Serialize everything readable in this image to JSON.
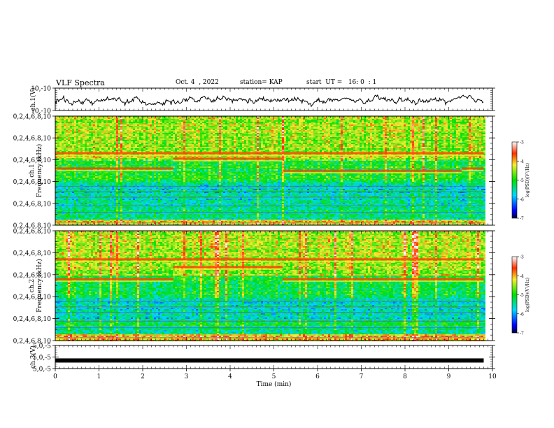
{
  "header": {
    "title": "VLF Spectra",
    "date": "Oct. 4  , 2022",
    "station": "station= KAP",
    "start": "start  UT =   16: 0  : 1"
  },
  "chart_data": [
    {
      "type": "line",
      "panel": "ch1-waveform",
      "ylabel": "ch.1(V)",
      "ylim": [
        -10,
        10
      ],
      "ytick_labels": [
        "10",
        "-10"
      ],
      "xlim": [
        0,
        9.8
      ],
      "series": [
        {
          "color": "#000000",
          "mean": -1.5,
          "amplitude": 5
        }
      ]
    },
    {
      "type": "heatmap",
      "panel": "ch1-spectrogram",
      "ylabel": "ch.1\nFrequency  (kHz)",
      "xlim": [
        0,
        9.8
      ],
      "ylim": [
        0,
        10
      ],
      "ytick_labels": [
        "0",
        "2",
        "4",
        "6",
        "8",
        "10"
      ],
      "colorbar": {
        "label": "log(PSD)(V²/Hz)",
        "range": [
          -7,
          -3
        ],
        "tick_labels": [
          "-3",
          "-4",
          "-5",
          "-6",
          "-7"
        ]
      },
      "segments_min": [
        0,
        1,
        2.7,
        5.2,
        9.3,
        9.8
      ],
      "tones_khz": [
        [
          6.6,
          5.2
        ],
        [
          5.2,
          6.6
        ],
        [
          6.6,
          6.1
        ],
        [
          6.6,
          5.0
        ],
        [
          5.2,
          6.6
        ]
      ]
    },
    {
      "type": "heatmap",
      "panel": "ch2-spectrogram",
      "ylabel": "ch.2\nFrequency  (kHz)",
      "xlim": [
        0,
        9.8
      ],
      "ylim": [
        0,
        10
      ],
      "ytick_labels": [
        "0",
        "2",
        "4",
        "6",
        "8",
        "10"
      ],
      "colorbar": {
        "label": "log(PSD)(V²/Hz)",
        "range": [
          -7,
          -3
        ],
        "tick_labels": [
          "-3",
          "-4",
          "-5",
          "-6",
          "-7"
        ]
      },
      "segments_min": [
        0,
        1,
        2.7,
        5.2,
        9.3,
        9.8
      ],
      "tones_khz": [
        [
          7.4,
          5.6
        ],
        [
          5.6,
          7.4
        ],
        [
          7.4,
          6.7
        ],
        [
          7.4,
          5.6
        ],
        [
          5.6,
          7.4
        ]
      ]
    },
    {
      "type": "line",
      "panel": "ch3-level",
      "ylabel": "ch.3(V)",
      "ylim": [
        -5,
        5
      ],
      "ytick_labels": [
        "5",
        "0",
        "-5"
      ],
      "xlim": [
        0,
        9.8
      ],
      "series": [
        {
          "color": "#000000",
          "value": -1.5
        }
      ]
    }
  ],
  "x_axis": {
    "label": "Time  (min)",
    "range": [
      0,
      10
    ],
    "tick_labels": [
      "0",
      "1",
      "2",
      "3",
      "4",
      "5",
      "6",
      "7",
      "8",
      "9",
      "10"
    ]
  }
}
